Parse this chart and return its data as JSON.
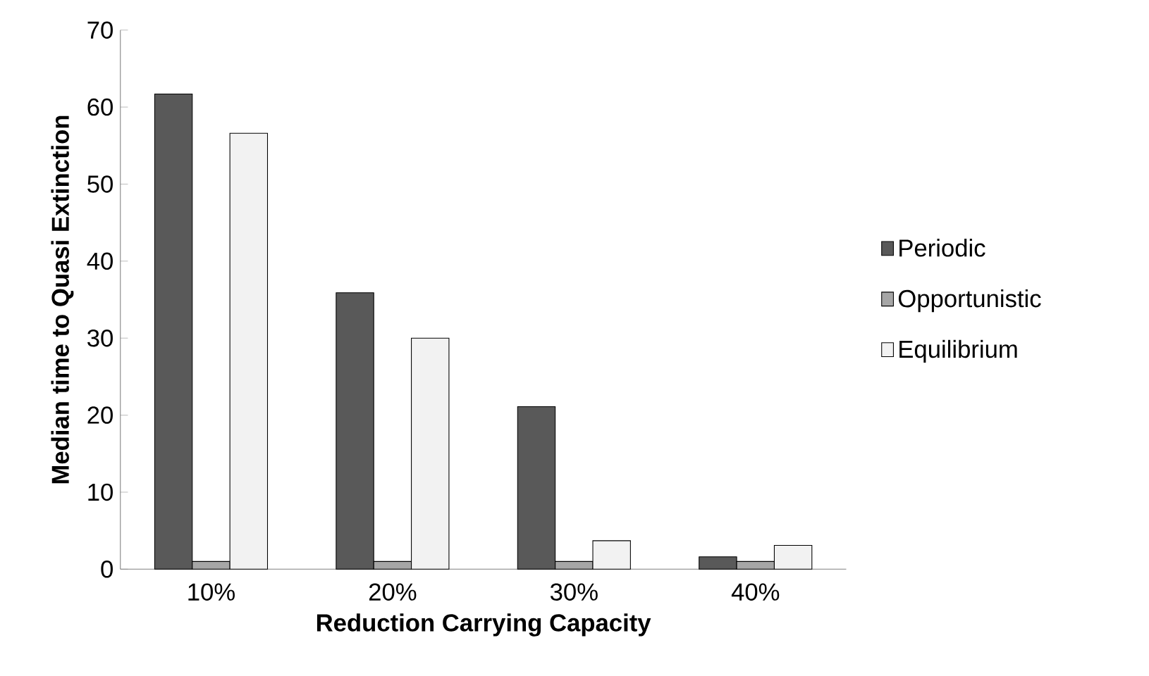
{
  "chart_data": {
    "type": "bar",
    "xlabel": "Reduction Carrying Capacity",
    "ylabel": "Median time to Quasi Extinction",
    "categories": [
      "10%",
      "20%",
      "30%",
      "40%"
    ],
    "series": [
      {
        "name": "Periodic",
        "color": "#595959",
        "values": [
          61.7,
          35.9,
          21.1,
          1.6
        ]
      },
      {
        "name": "Opportunistic",
        "color": "#a6a6a6",
        "values": [
          1,
          1,
          1,
          1
        ]
      },
      {
        "name": "Equilibrium",
        "color": "#f2f2f2",
        "values": [
          56.6,
          30.0,
          3.7,
          3.1
        ]
      }
    ],
    "ylim": [
      0,
      70
    ],
    "yticks": [
      0,
      10,
      20,
      30,
      40,
      50,
      60,
      70
    ],
    "grid": false,
    "legend": "right"
  }
}
